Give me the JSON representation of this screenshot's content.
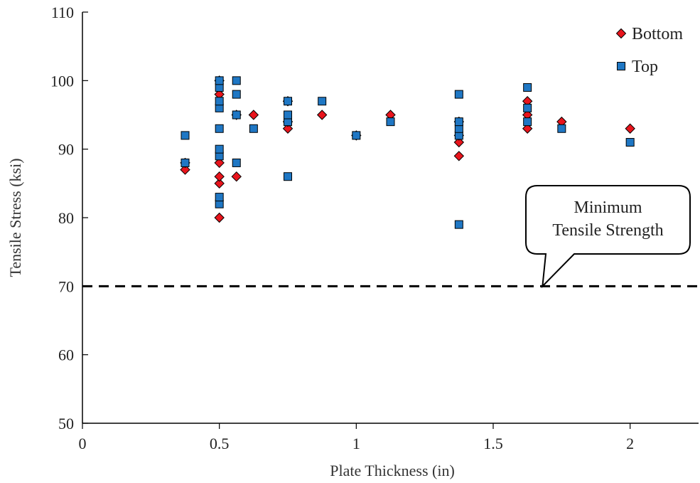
{
  "chart_data": {
    "type": "scatter",
    "xlabel": "Plate Thickness (in)",
    "ylabel": "Tensile Stress (ksi)",
    "xlim": [
      0,
      2.25
    ],
    "ylim": [
      50,
      110
    ],
    "x_ticks": [
      0,
      0.5,
      1,
      1.5,
      2
    ],
    "x_tick_labels": [
      "0",
      "0.5",
      "1",
      "1.5",
      "2"
    ],
    "y_ticks": [
      50,
      60,
      70,
      80,
      90,
      100,
      110
    ],
    "y_tick_labels": [
      "50",
      "60",
      "70",
      "80",
      "90",
      "100",
      "110"
    ],
    "grid": false,
    "legend_position": "top-right",
    "series": [
      {
        "name": "Bottom",
        "marker": "diamond",
        "color": "#e8141c",
        "points": [
          [
            0.375,
            87
          ],
          [
            0.375,
            88
          ],
          [
            0.5,
            80
          ],
          [
            0.5,
            85
          ],
          [
            0.5,
            86
          ],
          [
            0.5,
            88
          ],
          [
            0.5,
            98
          ],
          [
            0.5,
            100
          ],
          [
            0.5625,
            86
          ],
          [
            0.5625,
            95
          ],
          [
            0.625,
            95
          ],
          [
            0.75,
            93
          ],
          [
            0.75,
            94
          ],
          [
            0.75,
            97
          ],
          [
            0.875,
            95
          ],
          [
            1.0,
            92
          ],
          [
            1.125,
            95
          ],
          [
            1.375,
            89
          ],
          [
            1.375,
            91
          ],
          [
            1.375,
            92
          ],
          [
            1.375,
            94
          ],
          [
            1.625,
            93
          ],
          [
            1.625,
            95
          ],
          [
            1.625,
            97
          ],
          [
            1.75,
            94
          ],
          [
            2.0,
            93
          ]
        ]
      },
      {
        "name": "Top",
        "marker": "square",
        "color": "#1f77c4",
        "points": [
          [
            0.375,
            88
          ],
          [
            0.375,
            92
          ],
          [
            0.5,
            82
          ],
          [
            0.5,
            83
          ],
          [
            0.5,
            89
          ],
          [
            0.5,
            90
          ],
          [
            0.5,
            93
          ],
          [
            0.5,
            96
          ],
          [
            0.5,
            97
          ],
          [
            0.5,
            99
          ],
          [
            0.5,
            100
          ],
          [
            0.5625,
            88
          ],
          [
            0.5625,
            95
          ],
          [
            0.5625,
            98
          ],
          [
            0.5625,
            100
          ],
          [
            0.625,
            93
          ],
          [
            0.75,
            86
          ],
          [
            0.75,
            94
          ],
          [
            0.75,
            95
          ],
          [
            0.75,
            97
          ],
          [
            0.875,
            97
          ],
          [
            1.0,
            92
          ],
          [
            1.125,
            94
          ],
          [
            1.375,
            79
          ],
          [
            1.375,
            92
          ],
          [
            1.375,
            93
          ],
          [
            1.375,
            94
          ],
          [
            1.375,
            98
          ],
          [
            1.625,
            94
          ],
          [
            1.625,
            96
          ],
          [
            1.625,
            99
          ],
          [
            1.75,
            93
          ],
          [
            2.0,
            91
          ]
        ]
      }
    ],
    "reference_line": {
      "y": 70,
      "style": "dashed",
      "color": "#000000"
    },
    "annotation": {
      "lines": [
        "Minimum",
        "Tensile Strength"
      ],
      "points_to": {
        "x": 1.68,
        "y": 70
      }
    }
  }
}
